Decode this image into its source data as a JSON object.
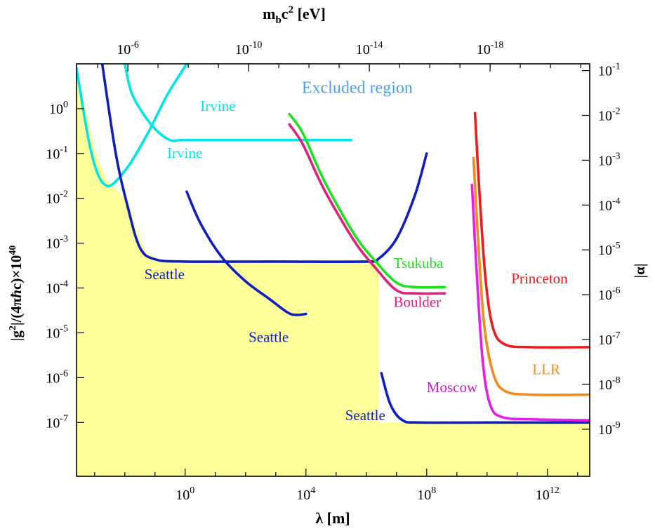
{
  "chart_data": {
    "type": "line",
    "title": "",
    "top_axis": {
      "label_main": "m",
      "label_sub": "b",
      "label_mid": "c",
      "label_sup": "2",
      "label_end": " [eV]",
      "ticks": [
        {
          "at_log_lambda": -1.9,
          "base": "10",
          "exp": "-6"
        },
        {
          "at_log_lambda": 2.1,
          "base": "10",
          "exp": "-10"
        },
        {
          "at_log_lambda": 6.1,
          "base": "10",
          "exp": "-14"
        },
        {
          "at_log_lambda": 10.1,
          "base": "10",
          "exp": "-18"
        }
      ]
    },
    "x_axis": {
      "label_main": "λ [m]",
      "scale": "log",
      "range_log10": [
        -3.6,
        13.4
      ],
      "ticks": [
        {
          "value_log10": 0,
          "base": "10",
          "exp": "0"
        },
        {
          "value_log10": 4,
          "base": "10",
          "exp": "4"
        },
        {
          "value_log10": 8,
          "base": "10",
          "exp": "8"
        },
        {
          "value_log10": 12,
          "base": "10",
          "exp": "12"
        }
      ]
    },
    "y_axis": {
      "label_a": "|g",
      "label_sup1": "2",
      "label_b": "|/(4π",
      "label_hbar": "ħ",
      "label_c": "c)×10",
      "label_sup2": "40",
      "scale": "log",
      "range_log10": [
        -8.2,
        1.0
      ],
      "ticks": [
        {
          "value_log10": 0,
          "base": "10",
          "exp": "0"
        },
        {
          "value_log10": -1,
          "base": "10",
          "exp": "-1"
        },
        {
          "value_log10": -2,
          "base": "10",
          "exp": "-2"
        },
        {
          "value_log10": -3,
          "base": "10",
          "exp": "-3"
        },
        {
          "value_log10": -4,
          "base": "10",
          "exp": "-4"
        },
        {
          "value_log10": -5,
          "base": "10",
          "exp": "-5"
        },
        {
          "value_log10": -6,
          "base": "10",
          "exp": "-6"
        },
        {
          "value_log10": -7,
          "base": "10",
          "exp": "-7"
        }
      ]
    },
    "right_axis": {
      "label": "|α|",
      "ticks": [
        {
          "at_log_y": 0.85,
          "base": "10",
          "exp": "-1"
        },
        {
          "at_log_y": -0.15,
          "base": "10",
          "exp": "-2"
        },
        {
          "at_log_y": -1.15,
          "base": "10",
          "exp": "-3"
        },
        {
          "at_log_y": -2.15,
          "base": "10",
          "exp": "-4"
        },
        {
          "at_log_y": -3.15,
          "base": "10",
          "exp": "-5"
        },
        {
          "at_log_y": -4.15,
          "base": "10",
          "exp": "-6"
        },
        {
          "at_log_y": -5.15,
          "base": "10",
          "exp": "-7"
        },
        {
          "at_log_y": -6.15,
          "base": "10",
          "exp": "-8"
        },
        {
          "at_log_y": -7.15,
          "base": "10",
          "exp": "-9"
        }
      ]
    },
    "excluded_label": {
      "text": "Excluded region",
      "at": [
        5.7,
        0.35
      ],
      "color": "#4aa0f0"
    },
    "allowed_region_color": "#ffff99",
    "allowed_region_boundary": [
      [
        -3.6,
        1.0
      ],
      [
        -3.4,
        0.3
      ],
      [
        -3.0,
        -0.9
      ],
      [
        -2.6,
        -1.6
      ],
      [
        -2.2,
        -1.85
      ],
      [
        -1.8,
        -2.2
      ],
      [
        -1.6,
        -2.7
      ],
      [
        -1.3,
        -3.2
      ],
      [
        -0.8,
        -3.38
      ],
      [
        0,
        -3.41
      ],
      [
        3.9,
        -3.41
      ],
      [
        4.0,
        -3.41
      ],
      [
        4.0,
        -3.38
      ],
      [
        6.0,
        -3.38
      ],
      [
        6.4,
        -3.42
      ],
      [
        6.4,
        -7.0
      ],
      [
        7.6,
        -7.0
      ],
      [
        13.4,
        -7.0
      ],
      [
        13.4,
        -8.2
      ],
      [
        -3.6,
        -8.2
      ]
    ],
    "series": [
      {
        "color": "#00e5e5",
        "values": [
          [
            -2.0,
            1.0
          ],
          [
            -1.8,
            0.4
          ],
          [
            -1.5,
            0.0
          ],
          [
            -1.0,
            -0.45
          ],
          [
            -0.5,
            -0.7
          ],
          [
            0,
            -0.7
          ],
          [
            2.5,
            -0.7
          ],
          [
            5.5,
            -0.7
          ]
        ]
      },
      {
        "color": "#00e5e5",
        "values": [
          [
            -3.6,
            0.9
          ],
          [
            -3.2,
            -0.7
          ],
          [
            -2.9,
            -1.45
          ],
          [
            -2.6,
            -1.72
          ],
          [
            -2.3,
            -1.62
          ],
          [
            -1.8,
            -1.2
          ],
          [
            -1.2,
            -0.5
          ],
          [
            -0.6,
            0.3
          ],
          [
            0.05,
            1.0
          ]
        ]
      },
      {
        "color": "#0f1fbf",
        "values": [
          [
            -2.75,
            1.0
          ],
          [
            -2.3,
            -1.0
          ],
          [
            -1.9,
            -2.2
          ],
          [
            -1.5,
            -3.1
          ],
          [
            -1.0,
            -3.36
          ],
          [
            0,
            -3.41
          ],
          [
            3.0,
            -3.41
          ],
          [
            6.0,
            -3.41
          ],
          [
            6.4,
            -3.35
          ],
          [
            7.0,
            -2.9
          ],
          [
            7.6,
            -1.95
          ],
          [
            8.0,
            -1.0
          ]
        ]
      },
      {
        "color": "#0f1fbf",
        "values": [
          [
            0.05,
            -1.85
          ],
          [
            0.5,
            -2.55
          ],
          [
            1.2,
            -3.3
          ],
          [
            2.0,
            -3.85
          ],
          [
            2.8,
            -4.25
          ],
          [
            3.4,
            -4.55
          ],
          [
            3.7,
            -4.6
          ],
          [
            4.0,
            -4.58
          ]
        ]
      },
      {
        "color": "#0f1fbf",
        "values": [
          [
            6.5,
            -5.9
          ],
          [
            6.8,
            -6.6
          ],
          [
            7.2,
            -6.95
          ],
          [
            7.8,
            -7.0
          ],
          [
            10,
            -7.0
          ],
          [
            13.4,
            -7.0
          ]
        ]
      },
      {
        "color": "#1fe01f",
        "values": [
          [
            3.45,
            -0.12
          ],
          [
            3.9,
            -0.55
          ],
          [
            4.6,
            -1.6
          ],
          [
            5.6,
            -2.8
          ],
          [
            6.3,
            -3.4
          ],
          [
            7.0,
            -3.88
          ],
          [
            7.6,
            -3.98
          ],
          [
            8.6,
            -3.98
          ]
        ]
      },
      {
        "color": "#e0207a",
        "values": [
          [
            3.45,
            -0.35
          ],
          [
            3.9,
            -0.8
          ],
          [
            4.6,
            -1.8
          ],
          [
            5.6,
            -2.95
          ],
          [
            6.3,
            -3.55
          ],
          [
            7.0,
            -4.05
          ],
          [
            7.6,
            -4.12
          ],
          [
            8.6,
            -4.12
          ]
        ]
      },
      {
        "color": "#ee1c1c",
        "values": [
          [
            9.6,
            -0.1
          ],
          [
            9.75,
            -1.9
          ],
          [
            9.95,
            -3.8
          ],
          [
            10.2,
            -4.9
          ],
          [
            10.6,
            -5.26
          ],
          [
            11.5,
            -5.32
          ],
          [
            13.4,
            -5.32
          ]
        ]
      },
      {
        "color": "#f48a1a",
        "values": [
          [
            9.55,
            -1.1
          ],
          [
            9.7,
            -2.9
          ],
          [
            9.9,
            -4.8
          ],
          [
            10.2,
            -5.9
          ],
          [
            10.6,
            -6.3
          ],
          [
            11.5,
            -6.38
          ],
          [
            13.4,
            -6.38
          ]
        ]
      },
      {
        "color": "#e81ee8",
        "values": [
          [
            9.5,
            -1.7
          ],
          [
            9.65,
            -3.6
          ],
          [
            9.85,
            -5.6
          ],
          [
            10.1,
            -6.6
          ],
          [
            10.5,
            -6.88
          ],
          [
            11.5,
            -6.93
          ],
          [
            13.4,
            -6.95
          ]
        ]
      }
    ],
    "labels": [
      {
        "text": "Irvine",
        "color": "#00e5e5",
        "at": [
          0.5,
          -0.05
        ],
        "anchor": "start"
      },
      {
        "text": "Irvine",
        "color": "#00e5e5",
        "at": [
          -0.6,
          -1.1
        ],
        "anchor": "start"
      },
      {
        "text": "Seattle",
        "color": "#0f1fbf",
        "at": [
          -1.35,
          -3.8
        ],
        "anchor": "start"
      },
      {
        "text": "Seattle",
        "color": "#0f1fbf",
        "at": [
          2.1,
          -5.2
        ],
        "anchor": "start"
      },
      {
        "text": "Seattle",
        "color": "#0f1fbf",
        "at": [
          5.3,
          -6.95
        ],
        "anchor": "start"
      },
      {
        "text": "Tsukuba",
        "color": "#1fe01f",
        "at": [
          6.9,
          -3.55
        ],
        "anchor": "start"
      },
      {
        "text": "Boulder",
        "color": "#e0207a",
        "at": [
          6.9,
          -4.42
        ],
        "anchor": "start"
      },
      {
        "text": "Princeton",
        "color": "#ee1c1c",
        "at": [
          10.8,
          -3.9
        ],
        "anchor": "start"
      },
      {
        "text": "LLR",
        "color": "#f48a1a",
        "at": [
          11.5,
          -5.92
        ],
        "anchor": "start"
      },
      {
        "text": "Moscow",
        "color": "#c51ec5",
        "at": [
          8.0,
          -6.32
        ],
        "anchor": "start"
      }
    ]
  }
}
